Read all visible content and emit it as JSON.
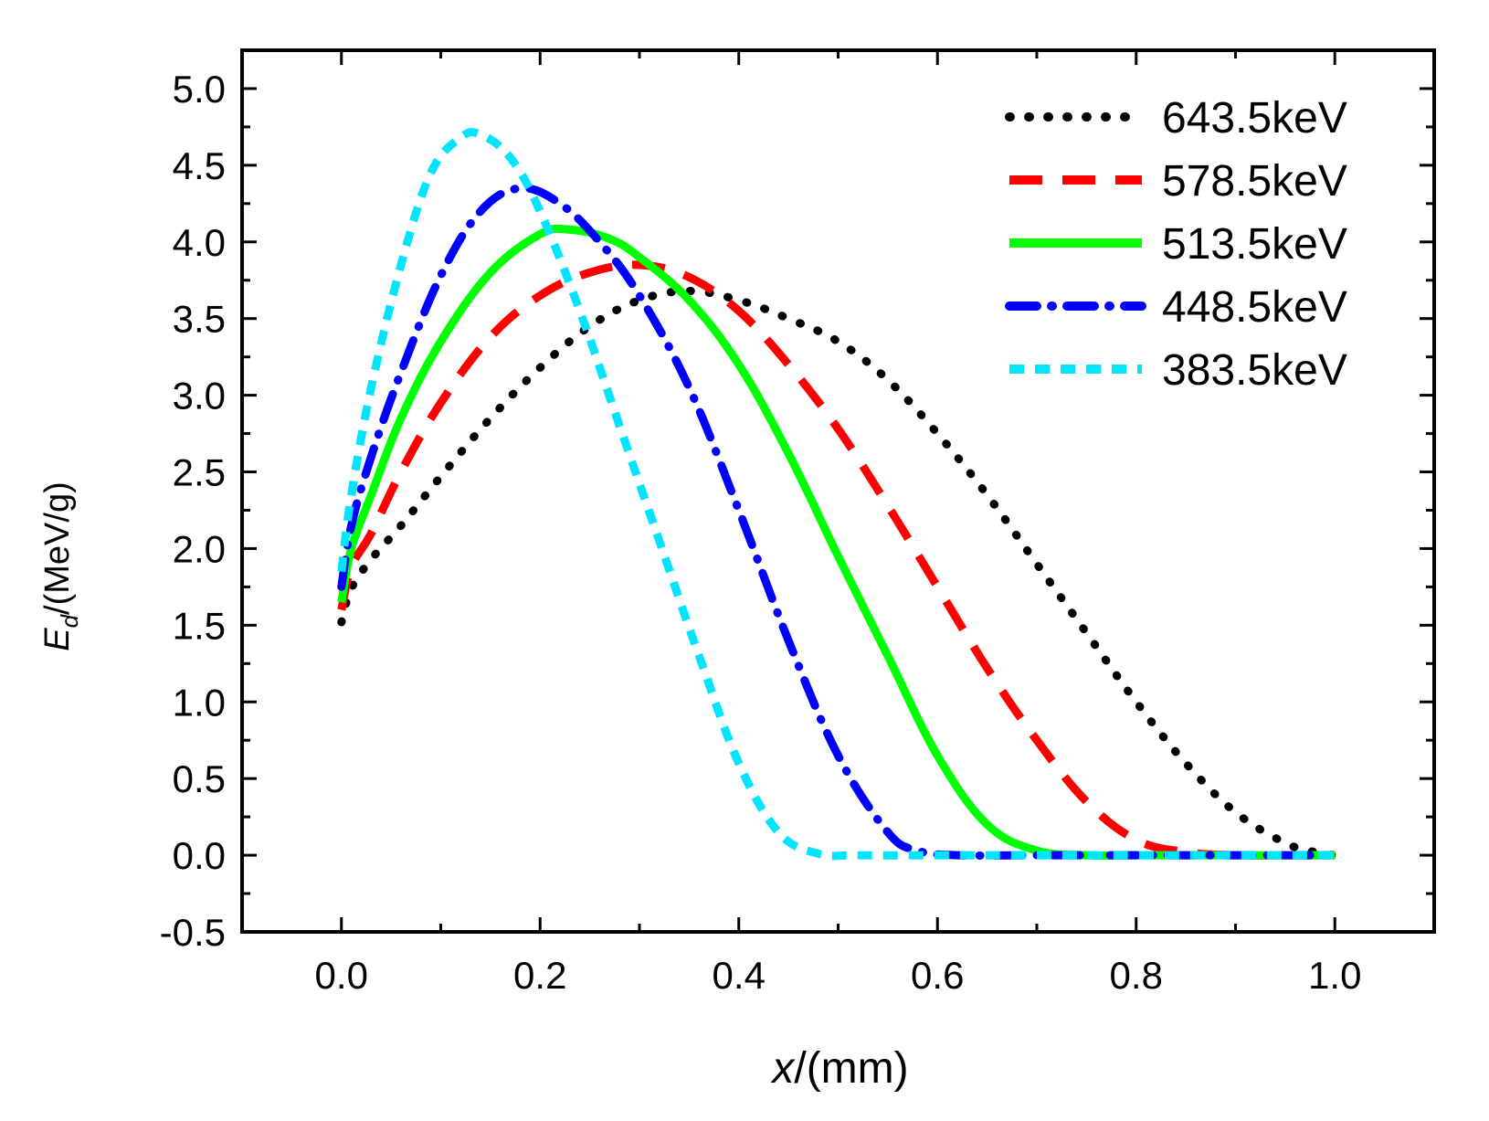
{
  "chart_data": {
    "type": "line",
    "title": "",
    "xlabel": {
      "var": "x",
      "unit": "/(mm)"
    },
    "ylabel": {
      "var": "E",
      "sub": "d",
      "unit": "/(MeV/g)"
    },
    "xlim": [
      -0.1,
      1.1
    ],
    "ylim": [
      -0.5,
      5.25
    ],
    "x_ticks": [
      "0.0",
      "0.2",
      "0.4",
      "0.6",
      "0.8",
      "1.0"
    ],
    "x_tick_values": [
      0,
      0.2,
      0.4,
      0.6,
      0.8,
      1.0
    ],
    "y_ticks": [
      "-0.5",
      "0.0",
      "0.5",
      "1.0",
      "1.5",
      "2.0",
      "2.5",
      "3.0",
      "3.5",
      "4.0",
      "4.5",
      "5.0"
    ],
    "y_tick_values": [
      -0.5,
      0,
      0.5,
      1.0,
      1.5,
      2.0,
      2.5,
      3.0,
      3.5,
      4.0,
      4.5,
      5.0
    ],
    "grid": false,
    "legend_position": "top-right",
    "series": [
      {
        "name": "643.5keV",
        "color": "#000000",
        "style": "dot",
        "x": [
          0,
          0.01,
          0.03,
          0.06,
          0.1,
          0.15,
          0.2,
          0.25,
          0.3,
          0.35,
          0.4,
          0.45,
          0.5,
          0.55,
          0.6,
          0.65,
          0.7,
          0.75,
          0.8,
          0.85,
          0.9,
          0.95,
          0.98,
          1.0
        ],
        "y": [
          1.52,
          1.74,
          1.93,
          2.15,
          2.47,
          2.85,
          3.18,
          3.45,
          3.62,
          3.68,
          3.62,
          3.5,
          3.35,
          3.1,
          2.75,
          2.35,
          1.9,
          1.45,
          1.0,
          0.6,
          0.28,
          0.08,
          0.02,
          0.0
        ]
      },
      {
        "name": "578.5keV",
        "color": "#ff0000",
        "style": "dash",
        "x": [
          0,
          0.01,
          0.03,
          0.06,
          0.1,
          0.15,
          0.2,
          0.25,
          0.3,
          0.35,
          0.4,
          0.45,
          0.5,
          0.55,
          0.6,
          0.65,
          0.7,
          0.75,
          0.8,
          0.85,
          0.9,
          0.95,
          1.0
        ],
        "y": [
          1.6,
          1.88,
          2.1,
          2.5,
          2.95,
          3.38,
          3.65,
          3.8,
          3.85,
          3.77,
          3.55,
          3.2,
          2.78,
          2.28,
          1.75,
          1.22,
          0.75,
          0.35,
          0.1,
          0.02,
          0.0,
          0.0,
          0.0
        ]
      },
      {
        "name": "513.5keV",
        "color": "#00ff00",
        "style": "solid",
        "x": [
          0,
          0.01,
          0.03,
          0.06,
          0.1,
          0.15,
          0.2,
          0.23,
          0.27,
          0.3,
          0.35,
          0.4,
          0.45,
          0.5,
          0.55,
          0.6,
          0.65,
          0.7,
          0.75,
          0.8,
          0.9,
          1.0
        ],
        "y": [
          1.65,
          2.0,
          2.35,
          2.85,
          3.35,
          3.8,
          4.05,
          4.08,
          4.02,
          3.9,
          3.62,
          3.2,
          2.62,
          1.95,
          1.3,
          0.65,
          0.2,
          0.03,
          0.0,
          0.0,
          0.0,
          0.0
        ]
      },
      {
        "name": "448.5keV",
        "color": "#0000ff",
        "style": "dashdot",
        "x": [
          0,
          0.01,
          0.03,
          0.06,
          0.1,
          0.14,
          0.18,
          0.22,
          0.26,
          0.3,
          0.35,
          0.4,
          0.45,
          0.5,
          0.55,
          0.58,
          0.62,
          0.7,
          0.8,
          0.9,
          1.0
        ],
        "y": [
          1.75,
          2.15,
          2.6,
          3.15,
          3.78,
          4.2,
          4.35,
          4.25,
          4.0,
          3.65,
          3.05,
          2.25,
          1.4,
          0.65,
          0.15,
          0.03,
          0.0,
          0.0,
          0.0,
          0.0,
          0.0
        ]
      },
      {
        "name": "383.5keV",
        "color": "#00e5ff",
        "style": "shortdash",
        "x": [
          0,
          0.01,
          0.03,
          0.06,
          0.09,
          0.12,
          0.14,
          0.17,
          0.2,
          0.24,
          0.28,
          0.32,
          0.36,
          0.4,
          0.44,
          0.48,
          0.52,
          0.6,
          0.7,
          0.8,
          0.9,
          1.0
        ],
        "y": [
          1.85,
          2.35,
          3.05,
          3.85,
          4.45,
          4.68,
          4.7,
          4.55,
          4.2,
          3.55,
          2.8,
          2.05,
          1.3,
          0.6,
          0.15,
          0.01,
          0.0,
          0.0,
          0.0,
          0.0,
          0.0,
          0.0
        ]
      }
    ]
  }
}
